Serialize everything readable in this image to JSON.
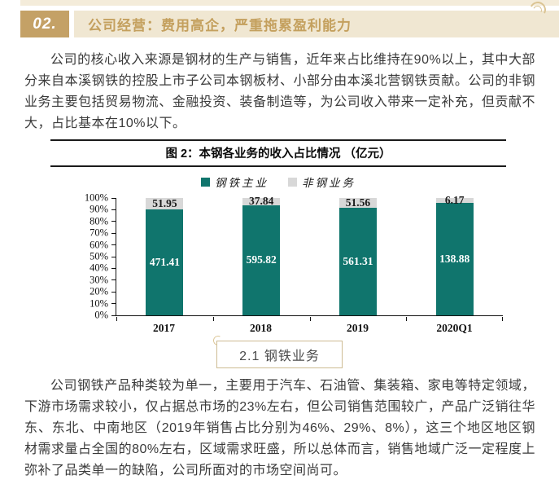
{
  "header": {
    "section_number": "02.",
    "section_title": "公司经营：费用高企，严重拖累盈利能力"
  },
  "paragraphs": {
    "p1": "公司的核心收入来源是钢材的生产与销售，近年来占比维持在90%以上，其中大部分来自本溪钢铁的控股上市子公司本钢板材、小部分由本溪北营钢铁贡献。公司的非钢业务主要包括贸易物流、金融投资、装备制造等，为公司收入带来一定补充，但贡献不大，占比基本在10%以下。",
    "p2": "公司钢铁产品种类较为单一，主要用于汽车、石油管、集装箱、家电等特定领域，下游市场需求较小，仅占据总市场的23%左右，但公司销售范围较广，产品广泛销往华东、东北、中南地区（2019年销售占比分别为46%、29%、8%），这三个地区地区钢材需求量占全国的80%左右，区域需求旺盛，所以总体而言，销售地域广泛一定程度上弥补了品类单一的缺陷，公司所面对的市场空间尚可。"
  },
  "chart_data": {
    "type": "bar",
    "stacked": true,
    "percent_stacked": true,
    "title": "图 2：本钢各业务的收入占比情况 （亿元）",
    "categories": [
      "2017",
      "2018",
      "2019",
      "2020Q1"
    ],
    "series": [
      {
        "name": "钢铁主业",
        "color": "#10756D",
        "values": [
          471.41,
          595.82,
          561.31,
          138.88
        ]
      },
      {
        "name": "非钢业务",
        "color": "#D8D8D8",
        "values": [
          51.95,
          37.84,
          51.56,
          6.17
        ]
      }
    ],
    "y_ticks": [
      "0%",
      "10%",
      "20%",
      "30%",
      "40%",
      "50%",
      "60%",
      "70%",
      "80%",
      "90%",
      "100%"
    ],
    "ylim": [
      0,
      100
    ],
    "ylabel": "",
    "xlabel": "",
    "grid": false,
    "legend_position": "top-center"
  },
  "subsection": {
    "label": "2.1 钢铁业务"
  },
  "colors": {
    "steel_bar": "#10756D",
    "non_steel_bar": "#D8D8D8",
    "badge_gold": "#C4A166",
    "band_background": "#F0E7D2",
    "band_text_gold": "#C4A05E",
    "axis_line": "#111111",
    "body_text": "#3A3A3A"
  }
}
